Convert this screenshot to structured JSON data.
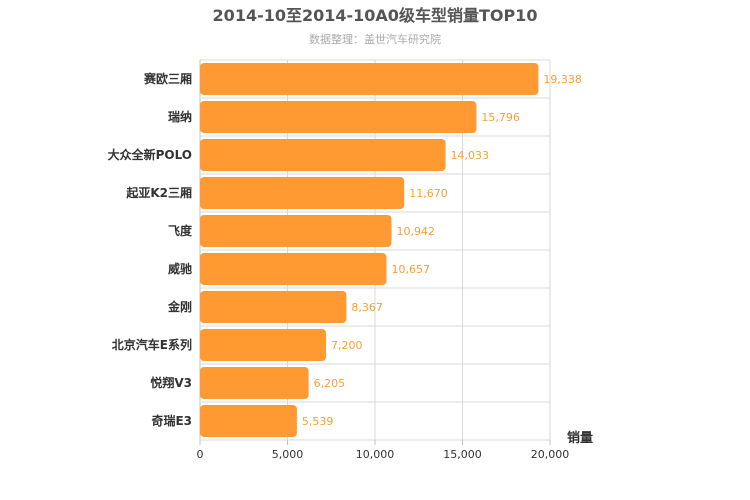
{
  "chart_data": {
    "type": "bar",
    "orientation": "horizontal",
    "title": "2014-10至2014-10A0级车型销量TOP10",
    "subtitle": "数据整理：盖世汽车研究院",
    "categories": [
      "赛欧三厢",
      "瑞纳",
      "大众全新POLO",
      "起亚K2三厢",
      "飞度",
      "威驰",
      "金刚",
      "北京汽车E系列",
      "悦翔V3",
      "奇瑞E3"
    ],
    "values": [
      19338,
      15796,
      14033,
      11670,
      10942,
      10657,
      8367,
      7200,
      6205,
      5539
    ],
    "value_labels": [
      "19,338",
      "15,796",
      "14,033",
      "11,670",
      "10,942",
      "10,657",
      "8,367",
      "7,200",
      "6,205",
      "5,539"
    ],
    "xlim": [
      0,
      20000
    ],
    "x_ticks": [
      0,
      5000,
      10000,
      15000,
      20000
    ],
    "x_tick_labels": [
      "0",
      "5,000",
      "10,000",
      "15,000",
      "20,000"
    ],
    "xlabel": "销量",
    "ylabel": "",
    "grid": true,
    "bar_color": "#ff9a33",
    "value_label_color": "#f7a035"
  }
}
